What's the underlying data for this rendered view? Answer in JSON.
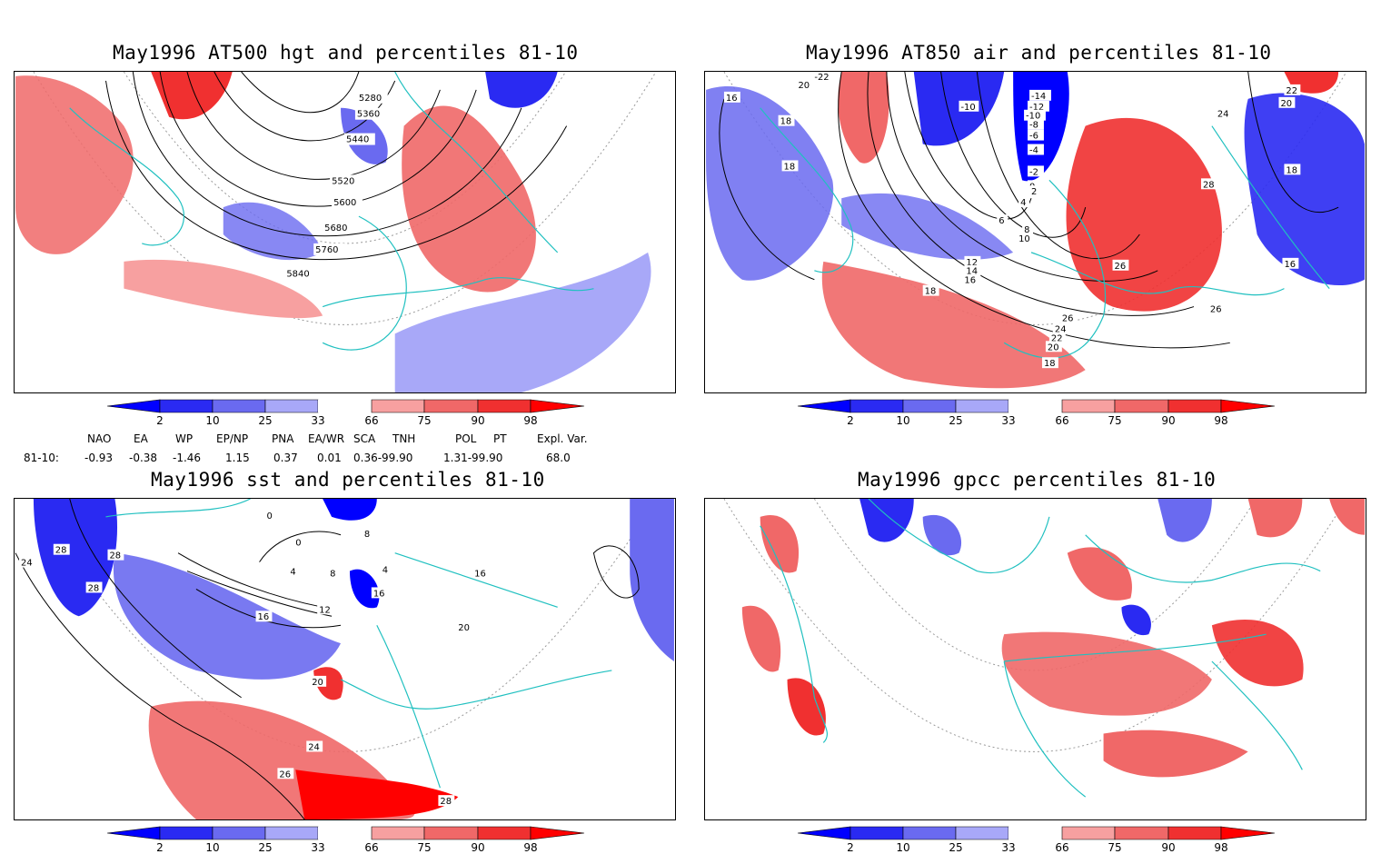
{
  "panels": [
    {
      "id": "hgt",
      "title": "May1996 AT500 hgt and percentiles 81-10",
      "contour_labels": [
        "5280",
        "5360",
        "5440",
        "5520",
        "5600",
        "5680",
        "5760",
        "5840"
      ]
    },
    {
      "id": "air",
      "title": "May1996 AT850 air and percentiles 81-10",
      "contour_labels": [
        "-22",
        "20",
        "16",
        "18",
        "18",
        "-10",
        "-14",
        "-12",
        "-10",
        "-8",
        "-6",
        "-4",
        "-2",
        "0",
        "2",
        "4",
        "6",
        "8",
        "10",
        "12",
        "14",
        "16",
        "18",
        "26",
        "24",
        "22",
        "20",
        "18",
        "26",
        "24",
        "22",
        "20",
        "18",
        "28",
        "26",
        "16"
      ]
    },
    {
      "id": "sst",
      "title": "May1996 sst and percentiles 81-10",
      "contour_labels": [
        "24",
        "28",
        "28",
        "28",
        "0",
        "0",
        "4",
        "8",
        "12",
        "16",
        "4",
        "8",
        "16",
        "20",
        "20",
        "24",
        "26",
        "28",
        "16"
      ]
    },
    {
      "id": "gpcc",
      "title": "May1996 gpcc percentiles 81-10",
      "contour_labels": []
    }
  ],
  "colorbar": {
    "ticks": [
      "2",
      "10",
      "25",
      "33",
      "66",
      "75",
      "90",
      "98"
    ],
    "colors": {
      "c_lt2": "#0000ff",
      "c_2_10": "#2a2af2",
      "c_10_25": "#6a6af0",
      "c_25_33": "#a8a8f8",
      "c_33_66": "#ffffff",
      "c_66_75": "#f7a0a0",
      "c_75_90": "#f06868",
      "c_90_98": "#f03030",
      "c_gt98": "#ff0000"
    }
  },
  "map_colors": {
    "land_outline": "#20c0c0",
    "contour": "#000000",
    "grid": "#999999"
  },
  "indices": {
    "row_label": "81-10:",
    "headers": [
      "NAO",
      "EA",
      "WP",
      "EP/NP",
      "PNA",
      "EA/WR",
      "SCA",
      "TNH",
      "POL",
      "PT",
      "Expl. Var."
    ],
    "values": [
      "-0.93",
      "-0.38",
      "-1.46",
      "1.15",
      "0.37",
      "0.01",
      "0.36-99.90",
      "",
      "1.31-99.90",
      "",
      "68.0"
    ]
  }
}
